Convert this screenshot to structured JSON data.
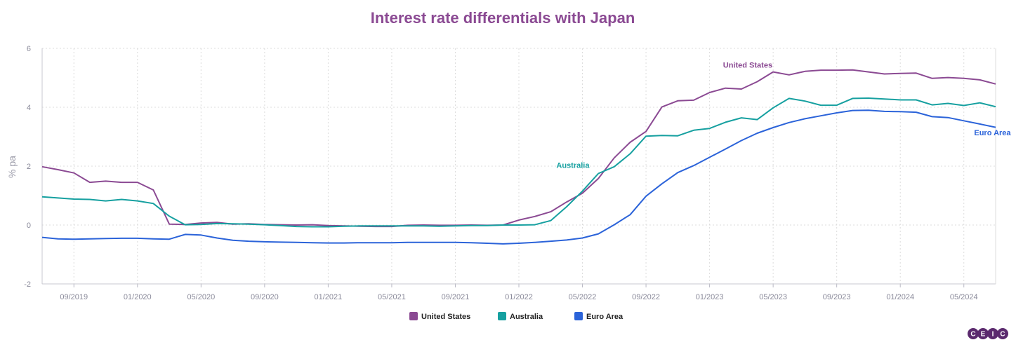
{
  "colors": {
    "title": "#8B4A93",
    "United States": "#8B4A93",
    "Australia": "#16A0A0",
    "Euro Area": "#2B63D9",
    "grid": "#dcdcdc",
    "axis": "#9a9aa8",
    "logo": "#5b2a6e"
  },
  "logo": {
    "text": "CEIC",
    "letters": [
      "C",
      "E",
      "I",
      "C"
    ]
  },
  "chart_data": {
    "type": "line",
    "title": "Interest rate differentials with Japan",
    "ylabel": "% pa",
    "xlabel": "",
    "ylim": [
      -2,
      6
    ],
    "yticks": [
      -2,
      0,
      2,
      4,
      6
    ],
    "xlim": [
      0,
      60
    ],
    "grid": true,
    "legend_position": "bottom-center",
    "xticks": [
      {
        "x": 2,
        "label": "09/2019"
      },
      {
        "x": 6,
        "label": "01/2020"
      },
      {
        "x": 10,
        "label": "05/2020"
      },
      {
        "x": 14,
        "label": "09/2020"
      },
      {
        "x": 18,
        "label": "01/2021"
      },
      {
        "x": 22,
        "label": "05/2021"
      },
      {
        "x": 26,
        "label": "09/2021"
      },
      {
        "x": 30,
        "label": "01/2022"
      },
      {
        "x": 34,
        "label": "05/2022"
      },
      {
        "x": 38,
        "label": "09/2022"
      },
      {
        "x": 42,
        "label": "01/2023"
      },
      {
        "x": 46,
        "label": "05/2023"
      },
      {
        "x": 50,
        "label": "09/2023"
      },
      {
        "x": 54,
        "label": "01/2024"
      },
      {
        "x": 58,
        "label": "05/2024"
      }
    ],
    "series": [
      {
        "name": "United States",
        "label": "United States",
        "label_anchor": {
          "x": 44.4,
          "y": 5.35
        },
        "x": [
          0,
          1,
          2,
          3,
          4,
          5,
          6,
          7,
          8,
          9,
          10,
          11,
          12,
          13,
          14,
          15,
          16,
          17,
          18,
          19,
          20,
          21,
          22,
          23,
          24,
          25,
          26,
          27,
          28,
          29,
          30,
          31,
          32,
          33,
          34,
          35,
          36,
          37,
          38,
          39,
          40,
          41,
          42,
          43,
          44,
          45,
          46,
          47,
          48,
          49,
          50,
          51,
          52,
          53,
          54,
          55,
          56,
          57,
          58,
          59,
          60
        ],
        "values": [
          1.98,
          1.88,
          1.77,
          1.45,
          1.49,
          1.45,
          1.45,
          1.19,
          0.03,
          0.02,
          0.07,
          0.09,
          0.03,
          0.04,
          0.02,
          0.01,
          0.0,
          0.01,
          -0.02,
          -0.03,
          -0.04,
          -0.05,
          -0.05,
          -0.01,
          0.0,
          -0.01,
          -0.01,
          0.0,
          -0.01,
          0.0,
          0.17,
          0.29,
          0.45,
          0.78,
          1.08,
          1.58,
          2.28,
          2.81,
          3.18,
          4.01,
          4.22,
          4.24,
          4.5,
          4.65,
          4.62,
          4.87,
          5.2,
          5.1,
          5.22,
          5.26,
          5.26,
          5.27,
          5.2,
          5.13,
          5.15,
          5.16,
          4.98,
          5.01,
          4.98,
          4.93,
          4.79
        ]
      },
      {
        "name": "Australia",
        "label": "Australia",
        "label_anchor": {
          "x": 33.4,
          "y": 1.94
        },
        "x": [
          0,
          1,
          2,
          3,
          4,
          5,
          6,
          7,
          8,
          9,
          10,
          11,
          12,
          13,
          14,
          15,
          16,
          17,
          18,
          19,
          20,
          21,
          22,
          23,
          24,
          25,
          26,
          27,
          28,
          29,
          30,
          31,
          32,
          33,
          34,
          35,
          36,
          37,
          38,
          39,
          40,
          41,
          42,
          43,
          44,
          45,
          46,
          47,
          48,
          49,
          50,
          51,
          52,
          53,
          54,
          55,
          56,
          57,
          58,
          59,
          60
        ],
        "values": [
          0.96,
          0.92,
          0.88,
          0.87,
          0.82,
          0.87,
          0.82,
          0.73,
          0.3,
          0.01,
          0.02,
          0.05,
          0.04,
          0.03,
          0.01,
          -0.02,
          -0.05,
          -0.06,
          -0.06,
          -0.04,
          -0.03,
          -0.03,
          -0.03,
          -0.03,
          -0.03,
          -0.04,
          -0.03,
          -0.02,
          -0.02,
          0.0,
          0.0,
          0.01,
          0.15,
          0.62,
          1.15,
          1.75,
          1.98,
          2.42,
          3.02,
          3.04,
          3.03,
          3.22,
          3.28,
          3.49,
          3.64,
          3.58,
          3.98,
          4.3,
          4.21,
          4.07,
          4.07,
          4.3,
          4.31,
          4.28,
          4.25,
          4.25,
          4.08,
          4.13,
          4.06,
          4.15,
          4.02
        ]
      },
      {
        "name": "Euro Area",
        "label": "Euro Area",
        "label_anchor": {
          "x": 59.8,
          "y": 3.05
        },
        "x": [
          0,
          1,
          2,
          3,
          4,
          5,
          6,
          7,
          8,
          9,
          10,
          11,
          12,
          13,
          14,
          15,
          16,
          17,
          18,
          19,
          20,
          21,
          22,
          23,
          24,
          25,
          26,
          27,
          28,
          29,
          30,
          31,
          32,
          33,
          34,
          35,
          36,
          37,
          38,
          39,
          40,
          41,
          42,
          43,
          44,
          45,
          46,
          47,
          48,
          49,
          50,
          51,
          52,
          53,
          54,
          55,
          56,
          57,
          58,
          59,
          60
        ],
        "values": [
          -0.42,
          -0.47,
          -0.48,
          -0.47,
          -0.46,
          -0.45,
          -0.45,
          -0.47,
          -0.48,
          -0.32,
          -0.34,
          -0.44,
          -0.52,
          -0.55,
          -0.57,
          -0.58,
          -0.59,
          -0.6,
          -0.61,
          -0.61,
          -0.6,
          -0.6,
          -0.6,
          -0.59,
          -0.59,
          -0.59,
          -0.59,
          -0.6,
          -0.62,
          -0.64,
          -0.62,
          -0.59,
          -0.55,
          -0.51,
          -0.44,
          -0.3,
          0.01,
          0.35,
          0.98,
          1.4,
          1.78,
          2.02,
          2.3,
          2.58,
          2.87,
          3.12,
          3.31,
          3.48,
          3.61,
          3.71,
          3.81,
          3.89,
          3.9,
          3.86,
          3.85,
          3.83,
          3.68,
          3.65,
          3.54,
          3.43,
          3.32
        ]
      }
    ]
  }
}
